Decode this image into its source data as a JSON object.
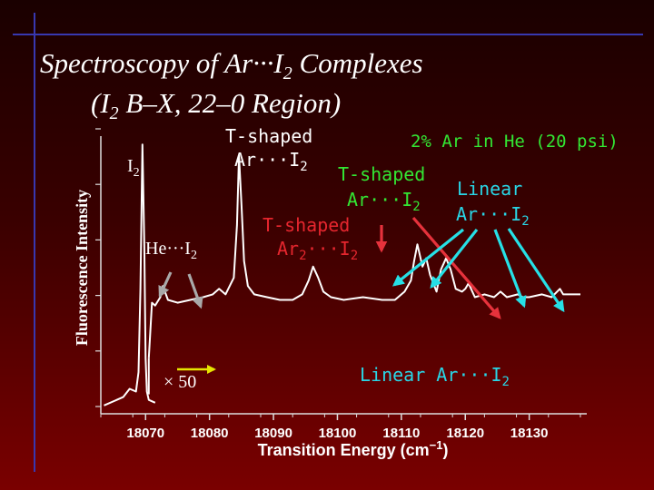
{
  "colors": {
    "title": "#ffffff",
    "label": "#ffffff",
    "green": "#33e633",
    "red": "#e6262e",
    "cyan": "#29d6e6",
    "axis": "#dddddd",
    "tick_label": "#ffffff",
    "spectrum": "#ffffff",
    "arrow_gray": "#a9a9a9",
    "arrow_red": "#e6323c",
    "arrow_cyan": "#26e0e6"
  },
  "slide": {
    "title_line1": "Spectroscopy of Ar···I",
    "title_line1_sub": "2",
    "title_line1_end": " Complexes",
    "title_line2_a": "(I",
    "title_line2_sub": "2",
    "title_line2_end": " B–X, 22–0 Region)"
  },
  "chart_data": {
    "type": "line",
    "title": "",
    "xlabel": "Transition Energy (cm",
    "xlabel_sup": "−1",
    "xlabel_end": ")",
    "ylabel": "Fluorescence Intensity",
    "xlim": [
      18063,
      18139
    ],
    "ylim": [
      0,
      1
    ],
    "xticks": [
      18070,
      18080,
      18090,
      18100,
      18110,
      18120,
      18130
    ],
    "yticks_count": 6,
    "grid": false,
    "scale_factor_label": "× 50",
    "conditions": "2% Ar in He (20 psi)",
    "series": [
      {
        "x": [
          18063.5,
          18066.5,
          18067.5,
          18068.5,
          18068.9,
          18069.2,
          18069.5,
          18069.8,
          18070.0,
          18070.2,
          18070.5,
          18071.5
        ],
        "y": [
          0.03,
          0.06,
          0.09,
          0.08,
          0.15,
          0.45,
          0.97,
          0.6,
          0.2,
          0.08,
          0.05,
          0.04
        ]
      },
      {
        "x": [
          18070.5,
          18071.0,
          18071.5,
          18072.3,
          18072.7,
          18073.5,
          18075,
          18077,
          18079,
          18080.5,
          18081.5,
          18082.5,
          18083.8,
          18084.3,
          18084.6,
          18085.0,
          18085.4,
          18086.0,
          18087,
          18089,
          18091,
          18093,
          18094.5,
          18095.5,
          18096.2,
          18097.0,
          18097.8,
          18099,
          18101,
          18104,
          18107,
          18109,
          18110.5,
          18111.5,
          18112.0,
          18112.5,
          18113.3,
          18113.9,
          18114.5,
          18115.5,
          18116.2,
          18117.0,
          18117.7,
          18118.5,
          18119.5,
          18120.0,
          18120.5,
          18121.5,
          18123,
          18124.5,
          18125.5,
          18126.5,
          18128.2,
          18129.0,
          18130,
          18132,
          18133.5,
          18134.8,
          18135.3,
          18136.5,
          18138
        ],
        "y": [
          0.2,
          0.4,
          0.39,
          0.42,
          0.46,
          0.41,
          0.4,
          0.41,
          0.42,
          0.43,
          0.45,
          0.43,
          0.49,
          0.68,
          0.93,
          0.75,
          0.55,
          0.46,
          0.43,
          0.42,
          0.41,
          0.41,
          0.43,
          0.48,
          0.53,
          0.49,
          0.44,
          0.42,
          0.41,
          0.42,
          0.41,
          0.41,
          0.44,
          0.48,
          0.55,
          0.61,
          0.53,
          0.56,
          0.5,
          0.44,
          0.52,
          0.56,
          0.52,
          0.45,
          0.44,
          0.45,
          0.47,
          0.42,
          0.43,
          0.42,
          0.44,
          0.42,
          0.43,
          0.42,
          0.42,
          0.43,
          0.42,
          0.45,
          0.43,
          0.43,
          0.43
        ]
      }
    ],
    "annotations": [
      {
        "id": "i2",
        "text": "I",
        "sub": "2",
        "end": "",
        "color": "white"
      },
      {
        "id": "he",
        "text": "He···I",
        "sub": "2",
        "end": "",
        "color": "white"
      },
      {
        "id": "ts1_a",
        "text": "T-shaped",
        "sub": "",
        "end": "",
        "color": "white"
      },
      {
        "id": "ts1_b",
        "text": "Ar···I",
        "sub": "2",
        "end": "",
        "color": "white"
      },
      {
        "id": "ts2_a",
        "text": "T-shaped",
        "sub": "",
        "end": "",
        "color": "green"
      },
      {
        "id": "ts2_b",
        "text": "Ar···I",
        "sub": "2",
        "end": "",
        "color": "green"
      },
      {
        "id": "ts3_a",
        "text": "T-shaped",
        "sub": "",
        "end": "",
        "color": "red"
      },
      {
        "id": "ts3_b",
        "text": "Ar",
        "sub": "2",
        "end": "···I",
        "sub2": "2",
        "color": "red"
      },
      {
        "id": "lin_a",
        "text": "Linear",
        "sub": "",
        "end": "",
        "color": "cyan"
      },
      {
        "id": "lin_b",
        "text": "Ar···I",
        "sub": "2",
        "end": "",
        "color": "cyan"
      },
      {
        "id": "lin_c",
        "text": "Linear Ar···I",
        "sub": "2",
        "end": "",
        "color": "cyan"
      }
    ]
  }
}
